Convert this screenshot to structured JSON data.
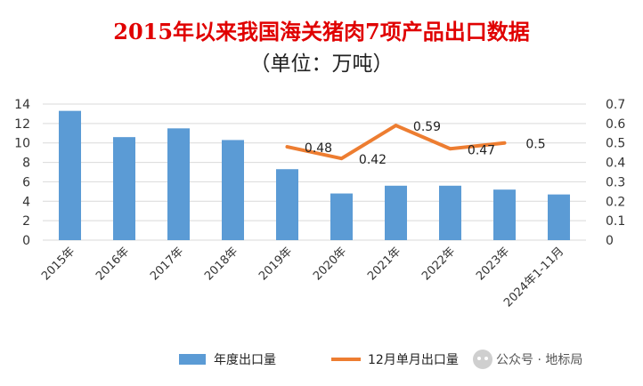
{
  "chart_data": {
    "type": "bar",
    "title": "2015年以来我国海关猪肉7项产品出口数据",
    "subtitle": "（单位：万吨）",
    "categories": [
      "2015年",
      "2016年",
      "2017年",
      "2018年",
      "2019年",
      "2020年",
      "2021年",
      "2022年",
      "2023年",
      "2024年1-11月"
    ],
    "series": [
      {
        "name": "年度出口量",
        "type": "bar",
        "axis": "left",
        "color": "#5b9bd5",
        "values": [
          13.3,
          10.6,
          11.5,
          10.3,
          7.3,
          4.8,
          5.6,
          5.6,
          5.2,
          4.7
        ]
      },
      {
        "name": "12月单月出口量",
        "type": "line",
        "axis": "right",
        "color": "#ed7d31",
        "values": [
          null,
          null,
          null,
          null,
          0.48,
          0.42,
          0.59,
          0.47,
          0.5,
          null
        ],
        "labels": [
          null,
          null,
          null,
          null,
          "0.48",
          "0.42",
          "0.59",
          "0.47",
          "0.5",
          null
        ]
      }
    ],
    "left_axis": {
      "min": 0,
      "max": 14,
      "ticks": [
        "0",
        "2",
        "4",
        "6",
        "8",
        "10",
        "12",
        "14"
      ]
    },
    "right_axis": {
      "min": 0,
      "max": 0.7,
      "ticks": [
        "0",
        "0.1",
        "0.2",
        "0.3",
        "0.4",
        "0.5",
        "0.6",
        "0.7"
      ]
    },
    "grid": true,
    "legend_position": "bottom"
  },
  "watermark": "公众号 · 地标局"
}
